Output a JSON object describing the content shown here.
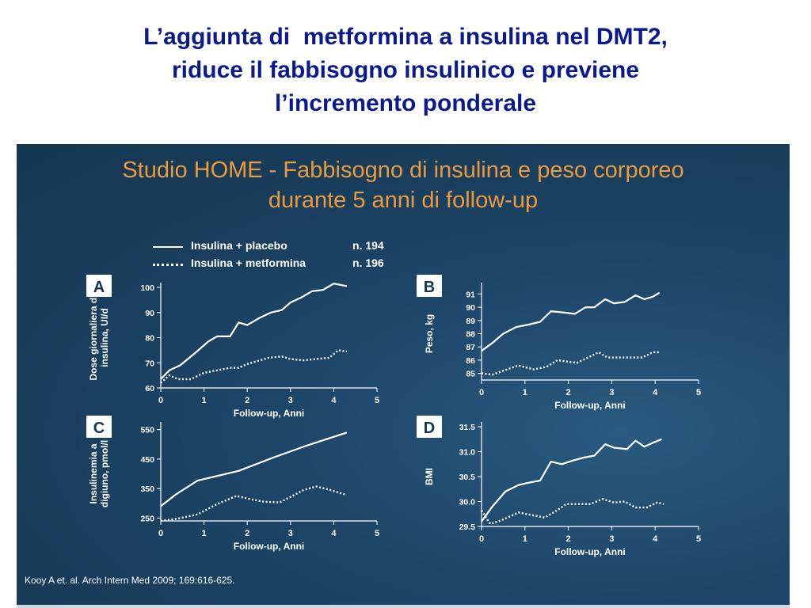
{
  "slide": {
    "title_lines": [
      "L’aggiunta di  metformina a insulina nel DMT2,",
      "riduce il fabbisogno insulinico e previene",
      "l’incremento ponderale"
    ]
  },
  "figure": {
    "title_lines": [
      "Studio HOME - Fabbisogno di insulina e peso corporeo",
      "durante 5 anni di follow-up"
    ],
    "legend": [
      {
        "label": "Insulina + placebo",
        "n": "n. 194",
        "style": "solid"
      },
      {
        "label": "Insulina + metformina",
        "n": "n. 196",
        "style": "dotted"
      }
    ],
    "citation": "Kooy A et. al. Arch Intern Med  2009; 169:616-625."
  },
  "colors": {
    "title": "#0a1a8c",
    "figure_title": "#eb9a3c",
    "panel_bg": "#1d4568",
    "lines": "#ffffff"
  },
  "chart_data": [
    {
      "panel": "A",
      "type": "line",
      "ylabel": "Dose giornaliera di insulina, UI/d",
      "xlabel": "Follow-up, Anni",
      "xlim": [
        0,
        5
      ],
      "ylim": [
        60,
        100
      ],
      "xticks": [
        0,
        1,
        2,
        3,
        4,
        5
      ],
      "yticks": [
        60,
        70,
        80,
        90,
        100
      ],
      "ytick_labels": [
        "60",
        "70",
        "80",
        "90",
        "100"
      ],
      "series": [
        {
          "name": "Insulina + placebo",
          "style": "solid",
          "x": [
            0,
            0.2,
            0.45,
            0.8,
            1.1,
            1.3,
            1.45,
            1.6,
            1.8,
            2.0,
            2.3,
            2.55,
            2.8,
            3.0,
            3.25,
            3.5,
            3.75,
            4.0,
            4.15,
            4.3
          ],
          "y": [
            63.5,
            67,
            69,
            74,
            78.5,
            80.5,
            80.5,
            80.5,
            86,
            85,
            88,
            90,
            91,
            94,
            96,
            98.5,
            99,
            101.5,
            101,
            100.5
          ]
        },
        {
          "name": "Insulina + metformina",
          "style": "dotted",
          "x": [
            0,
            0.2,
            0.4,
            0.7,
            1.0,
            1.3,
            1.6,
            1.8,
            2.0,
            2.3,
            2.5,
            2.8,
            3.0,
            3.3,
            3.6,
            3.9,
            4.1,
            4.3
          ],
          "y": [
            62,
            65,
            63.5,
            63.5,
            66,
            67,
            68,
            68,
            69.5,
            71,
            72,
            72.5,
            71.5,
            71,
            71.5,
            72,
            75,
            74.5
          ]
        }
      ]
    },
    {
      "panel": "B",
      "type": "line",
      "ylabel": "Peso, kg",
      "xlabel": "Follow-up, Anni",
      "xlim": [
        0,
        5
      ],
      "ylim": [
        84.5,
        91.5
      ],
      "xticks": [
        0,
        1,
        2,
        3,
        4,
        5
      ],
      "yticks": [
        85,
        86,
        87,
        88,
        89,
        90,
        91
      ],
      "ytick_labels": [
        "85",
        "86",
        "87",
        "88",
        "89",
        "90",
        "91"
      ],
      "series": [
        {
          "name": "Insulina + placebo",
          "style": "solid",
          "x": [
            0,
            0.25,
            0.5,
            0.8,
            1.1,
            1.35,
            1.6,
            1.9,
            2.15,
            2.4,
            2.6,
            2.85,
            3.05,
            3.3,
            3.55,
            3.75,
            3.95,
            4.1
          ],
          "y": [
            86.7,
            87.3,
            88.0,
            88.5,
            88.7,
            88.9,
            89.7,
            89.6,
            89.5,
            90.0,
            90.0,
            90.6,
            90.3,
            90.4,
            90.9,
            90.6,
            90.8,
            91.1
          ]
        },
        {
          "name": "Insulina + metformina",
          "style": "dotted",
          "x": [
            0,
            0.25,
            0.5,
            0.85,
            1.2,
            1.5,
            1.75,
            1.95,
            2.2,
            2.45,
            2.7,
            2.9,
            3.2,
            3.5,
            3.7,
            3.95,
            4.1
          ],
          "y": [
            85.0,
            84.9,
            85.2,
            85.6,
            85.3,
            85.5,
            86.0,
            85.9,
            85.8,
            86.2,
            86.6,
            86.2,
            86.2,
            86.2,
            86.2,
            86.6,
            86.6
          ]
        }
      ]
    },
    {
      "panel": "C",
      "type": "line",
      "ylabel": "Insulinemia a digiuno, pmol/l",
      "xlabel": "Follow-up, Anni",
      "xlim": [
        0,
        5
      ],
      "ylim": [
        240,
        560
      ],
      "xticks": [
        0,
        1,
        2,
        3,
        4,
        5
      ],
      "yticks": [
        250,
        350,
        450,
        550
      ],
      "ytick_labels": [
        "250",
        "350",
        "450",
        "550"
      ],
      "series": [
        {
          "name": "Insulina + placebo",
          "style": "solid",
          "x": [
            0,
            0.35,
            0.85,
            1.8,
            2.6,
            3.4,
            4.3
          ],
          "y": [
            290,
            330,
            377,
            410,
            455,
            497,
            540
          ]
        },
        {
          "name": "Insulina + metformina",
          "style": "dotted",
          "x": [
            0,
            0.4,
            0.85,
            1.3,
            1.75,
            2.1,
            2.4,
            2.75,
            3.05,
            3.3,
            3.6,
            3.9,
            4.3
          ],
          "y": [
            240,
            248,
            262,
            297,
            325,
            313,
            305,
            303,
            325,
            345,
            357,
            346,
            328
          ]
        }
      ]
    },
    {
      "panel": "D",
      "type": "line",
      "ylabel": "BMI",
      "xlabel": "Follow-up, Anni",
      "xlim": [
        0,
        5
      ],
      "ylim": [
        29.5,
        31.5
      ],
      "xticks": [
        0,
        1,
        2,
        3,
        4,
        5
      ],
      "yticks": [
        29.5,
        30.0,
        30.5,
        31.0,
        31.5
      ],
      "ytick_labels": [
        "29.5",
        "30.0",
        "30.5",
        "31.0",
        "31.5"
      ],
      "series": [
        {
          "name": "Insulina + placebo",
          "style": "solid",
          "x": [
            0,
            0.25,
            0.55,
            0.85,
            1.1,
            1.35,
            1.6,
            1.85,
            2.1,
            2.35,
            2.6,
            2.85,
            3.05,
            3.35,
            3.55,
            3.75,
            3.95,
            4.15
          ],
          "y": [
            29.6,
            29.9,
            30.2,
            30.33,
            30.38,
            30.42,
            30.8,
            30.75,
            30.82,
            30.88,
            30.92,
            31.15,
            31.08,
            31.05,
            31.22,
            31.1,
            31.18,
            31.25
          ]
        },
        {
          "name": "Insulina + metformina",
          "style": "dotted",
          "x": [
            0,
            0.2,
            0.45,
            0.85,
            1.2,
            1.45,
            1.7,
            1.95,
            2.2,
            2.5,
            2.8,
            3.05,
            3.3,
            3.55,
            3.8,
            4.05,
            4.2
          ],
          "y": [
            29.82,
            29.55,
            29.62,
            29.78,
            29.72,
            29.68,
            29.8,
            29.95,
            29.95,
            29.95,
            30.05,
            29.98,
            30.0,
            29.88,
            29.88,
            29.98,
            29.95
          ]
        }
      ]
    }
  ]
}
